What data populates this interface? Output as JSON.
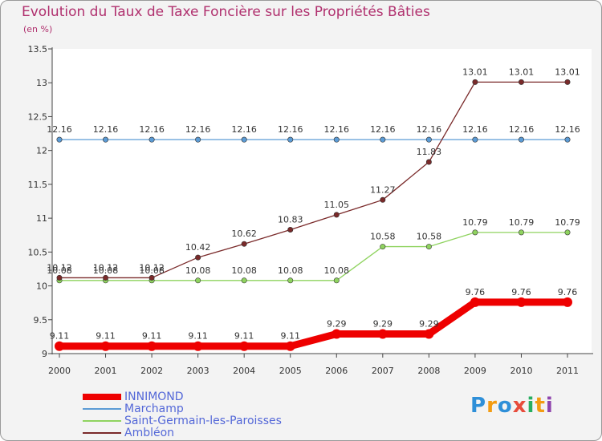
{
  "chart_data": {
    "type": "line",
    "title": "Evolution du Taux de Taxe Foncière sur les Propriétés Bâties",
    "subtitle": "(en %)",
    "x": [
      "2000",
      "2001",
      "2002",
      "2003",
      "2004",
      "2005",
      "2006",
      "2007",
      "2008",
      "2009",
      "2010",
      "2011"
    ],
    "ylim": [
      9,
      13.5
    ],
    "yticks": [
      "9",
      "9.5",
      "10",
      "10.5",
      "11",
      "11.5",
      "12",
      "12.5",
      "13",
      "13.5"
    ],
    "yticks_values": [
      9,
      9.5,
      10,
      10.5,
      11,
      11.5,
      12,
      12.5,
      13,
      13.5
    ],
    "grid": false,
    "series": [
      {
        "name": "INNIMOND",
        "color": "#ee0000",
        "values": [
          9.11,
          9.11,
          9.11,
          9.11,
          9.11,
          9.11,
          9.29,
          9.29,
          9.29,
          9.76,
          9.76,
          9.76
        ],
        "labels": [
          "9.11",
          "9.11",
          "9.11",
          "9.11",
          "9.11",
          "9.11",
          "9.29",
          "9.29",
          "9.29",
          "9.76",
          "9.76",
          "9.76"
        ]
      },
      {
        "name": "Marchamp",
        "color": "#5b9bd5",
        "values": [
          12.16,
          12.16,
          12.16,
          12.16,
          12.16,
          12.16,
          12.16,
          12.16,
          12.16,
          12.16,
          12.16,
          12.16
        ],
        "labels": [
          "12.16",
          "12.16",
          "12.16",
          "12.16",
          "12.16",
          "12.16",
          "12.16",
          "12.16",
          "12.16",
          "12.16",
          "12.16",
          "12.16"
        ]
      },
      {
        "name": "Saint-Germain-les-Paroisses",
        "color": "#8fd35f",
        "values": [
          10.08,
          10.08,
          10.08,
          10.08,
          10.08,
          10.08,
          10.08,
          10.58,
          10.58,
          10.79,
          10.79,
          10.79
        ],
        "labels": [
          "10.08",
          "10.08",
          "10.08",
          "10.08",
          "10.08",
          "10.08",
          "10.08",
          "10.58",
          "10.58",
          "10.79",
          "10.79",
          "10.79"
        ]
      },
      {
        "name": "Ambléon",
        "color": "#7a2a2a",
        "values": [
          10.12,
          10.12,
          10.12,
          10.42,
          10.62,
          10.83,
          11.05,
          11.27,
          11.83,
          13.01,
          13.01,
          13.01
        ],
        "labels": [
          "10.12",
          "10.12",
          "10.12",
          "10.42",
          "10.62",
          "10.83",
          "11.05",
          "11.27",
          "11.83",
          "13.01",
          "13.01",
          "13.01"
        ]
      }
    ]
  },
  "legend": {
    "items": [
      "INNIMOND",
      "Marchamp",
      "Saint-Germain-les-Paroisses",
      "Ambléon"
    ],
    "colors": [
      "#ee0000",
      "#5b9bd5",
      "#8fd35f",
      "#7a2a2a"
    ]
  },
  "branding": {
    "letters": [
      "P",
      "r",
      "o",
      "x",
      "i",
      "t",
      "i"
    ],
    "letter_colors": [
      "#2e8fd8",
      "#f39c12",
      "#2e8fd8",
      "#e74c3c",
      "#27ae60",
      "#f39c12",
      "#8e44ad"
    ]
  }
}
